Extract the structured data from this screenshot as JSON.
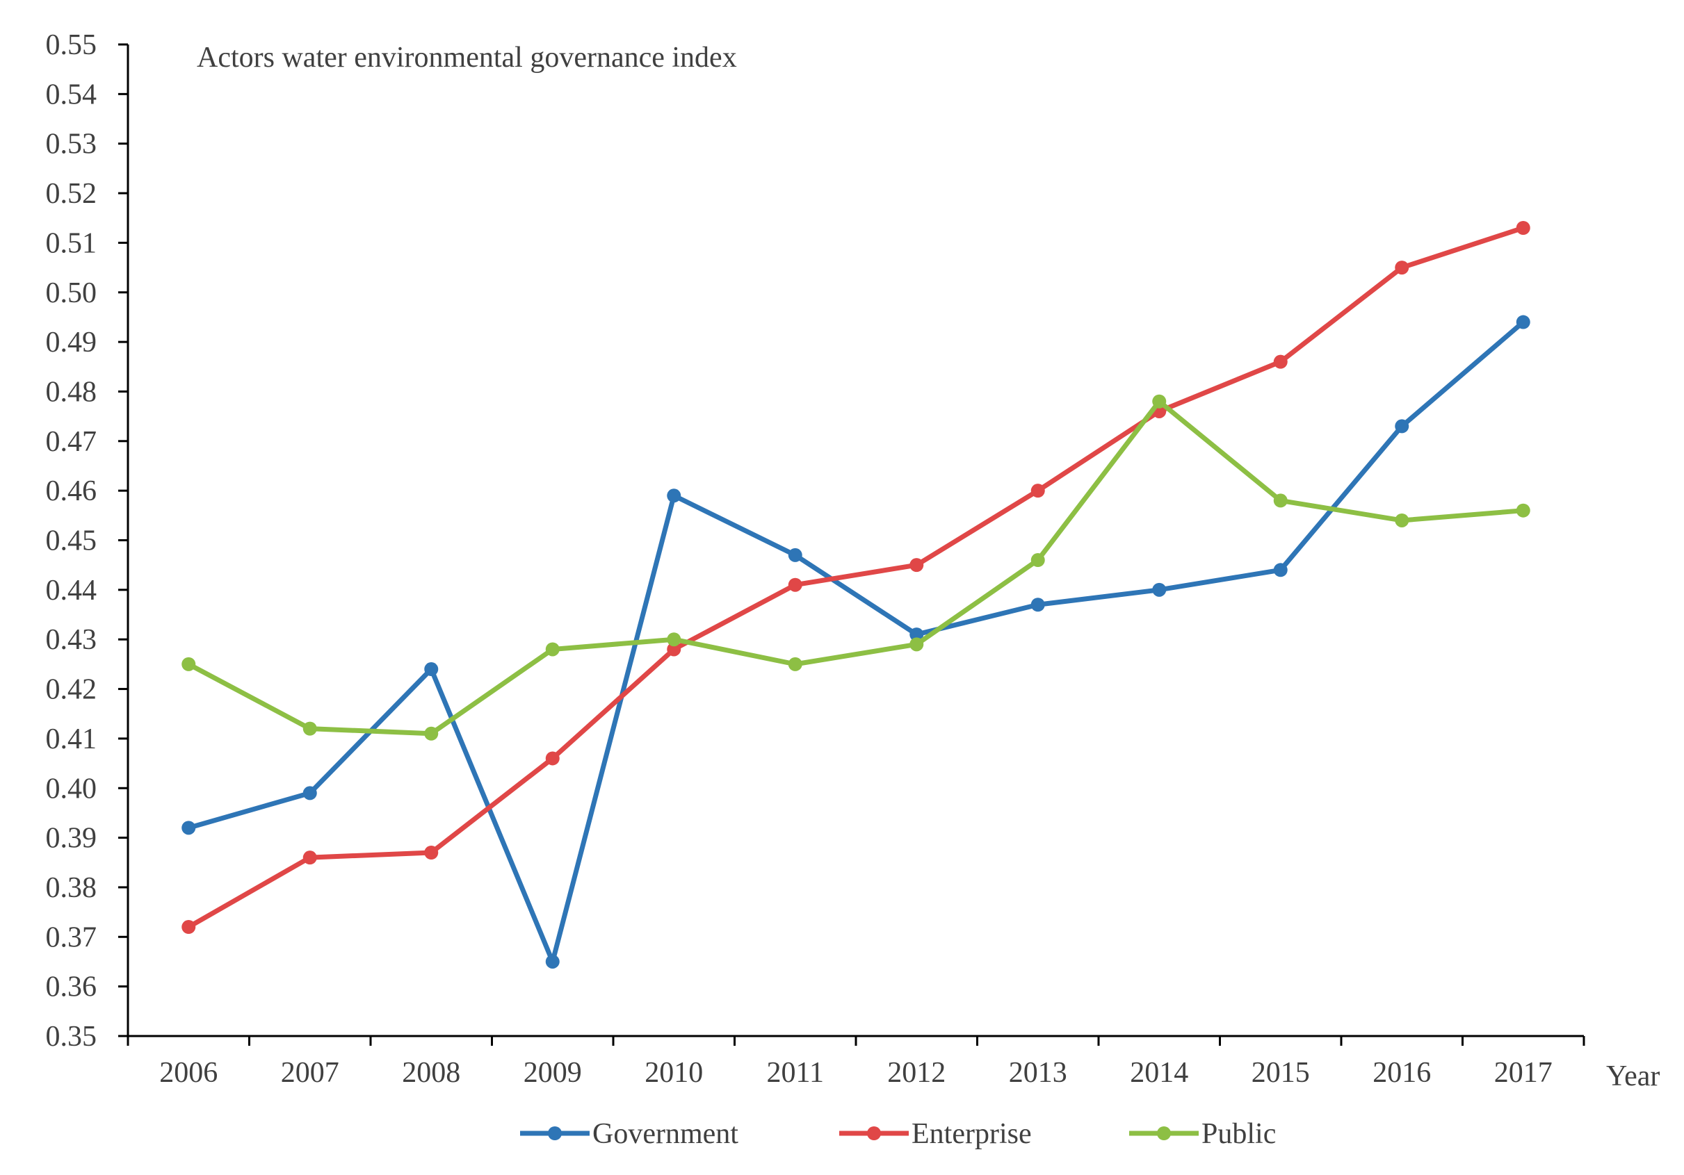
{
  "chart_data": {
    "type": "line",
    "title": "Actors water environmental governance index",
    "xlabel": "Year",
    "ylabel": "",
    "categories": [
      "2006",
      "2007",
      "2008",
      "2009",
      "2010",
      "2011",
      "2012",
      "2013",
      "2014",
      "2015",
      "2016",
      "2017"
    ],
    "ylim": [
      0.35,
      0.55
    ],
    "ytick_labels": [
      "0.35",
      "0.36",
      "0.37",
      "0.38",
      "0.39",
      "0.40",
      "0.41",
      "0.42",
      "0.43",
      "0.44",
      "0.45",
      "0.46",
      "0.47",
      "0.48",
      "0.49",
      "0.50",
      "0.51",
      "0.52",
      "0.53",
      "0.54",
      "0.55"
    ],
    "grid": false,
    "legend_position": "bottom",
    "series": [
      {
        "name": "Government",
        "color": "#2E75B6",
        "values": [
          0.392,
          0.399,
          0.424,
          0.365,
          0.459,
          0.447,
          0.431,
          0.437,
          0.44,
          0.444,
          0.473,
          0.494
        ]
      },
      {
        "name": "Enterprise",
        "color": "#E04747",
        "values": [
          0.372,
          0.386,
          0.387,
          0.406,
          0.428,
          0.441,
          0.445,
          0.46,
          0.476,
          0.486,
          0.505,
          0.513
        ]
      },
      {
        "name": "Public",
        "color": "#8DBF44",
        "values": [
          0.425,
          0.412,
          0.411,
          0.428,
          0.43,
          0.425,
          0.429,
          0.446,
          0.478,
          0.458,
          0.454,
          0.456
        ]
      }
    ]
  }
}
